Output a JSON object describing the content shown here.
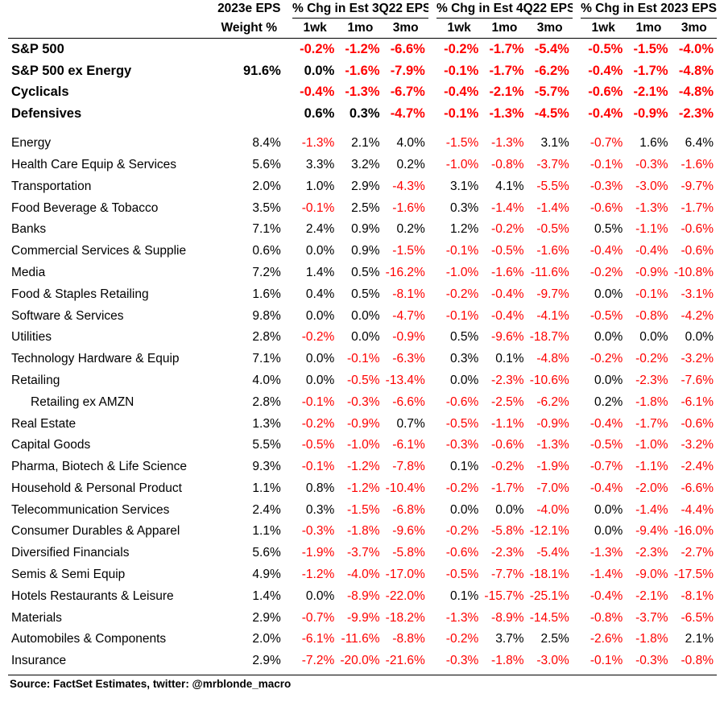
{
  "header": {
    "weight_top": "2023e EPS",
    "weight_bottom": "Weight %",
    "groups": [
      "% Chg in Est 3Q22 EPS",
      "% Chg in Est 4Q22 EPS",
      "% Chg in Est 2023 EPS"
    ],
    "periods": [
      "1wk",
      "1mo",
      "3mo",
      "1wk",
      "1mo",
      "3mo",
      "1wk",
      "1mo",
      "3mo"
    ]
  },
  "summary_rows": [
    {
      "name": "S&P 500",
      "weight": "",
      "values": [
        "-0.2%",
        "-1.2%",
        "-6.6%",
        "-0.2%",
        "-1.7%",
        "-5.4%",
        "-0.5%",
        "-1.5%",
        "-4.0%"
      ]
    },
    {
      "name": "S&P 500 ex Energy",
      "weight": "91.6%",
      "values": [
        "0.0%",
        "-1.6%",
        "-7.9%",
        "-0.1%",
        "-1.7%",
        "-6.2%",
        "-0.4%",
        "-1.7%",
        "-4.8%"
      ]
    },
    {
      "name": "Cyclicals",
      "weight": "",
      "values": [
        "-0.4%",
        "-1.3%",
        "-6.7%",
        "-0.4%",
        "-2.1%",
        "-5.7%",
        "-0.6%",
        "-2.1%",
        "-4.8%"
      ]
    },
    {
      "name": "Defensives",
      "weight": "",
      "values": [
        "0.6%",
        "0.3%",
        "-4.7%",
        "-0.1%",
        "-1.3%",
        "-4.5%",
        "-0.4%",
        "-0.9%",
        "-2.3%"
      ]
    }
  ],
  "rows": [
    {
      "name": "Energy",
      "weight": "8.4%",
      "values": [
        "-1.3%",
        "2.1%",
        "4.0%",
        "-1.5%",
        "-1.3%",
        "3.1%",
        "-0.7%",
        "1.6%",
        "6.4%"
      ]
    },
    {
      "name": "Health Care Equip & Services",
      "weight": "5.6%",
      "values": [
        "3.3%",
        "3.2%",
        "0.2%",
        "-1.0%",
        "-0.8%",
        "-3.7%",
        "-0.1%",
        "-0.3%",
        "-1.6%"
      ]
    },
    {
      "name": "Transportation",
      "weight": "2.0%",
      "values": [
        "1.0%",
        "2.9%",
        "-4.3%",
        "3.1%",
        "4.1%",
        "-5.5%",
        "-0.3%",
        "-3.0%",
        "-9.7%"
      ]
    },
    {
      "name": "Food Beverage & Tobacco",
      "weight": "3.5%",
      "values": [
        "-0.1%",
        "2.5%",
        "-1.6%",
        "0.3%",
        "-1.4%",
        "-1.4%",
        "-0.6%",
        "-1.3%",
        "-1.7%"
      ]
    },
    {
      "name": "Banks",
      "weight": "7.1%",
      "values": [
        "2.4%",
        "0.9%",
        "0.2%",
        "1.2%",
        "-0.2%",
        "-0.5%",
        "0.5%",
        "-1.1%",
        "-0.6%"
      ]
    },
    {
      "name": "Commercial Services & Supplie",
      "weight": "0.6%",
      "values": [
        "0.0%",
        "0.9%",
        "-1.5%",
        "-0.1%",
        "-0.5%",
        "-1.6%",
        "-0.4%",
        "-0.4%",
        "-0.6%"
      ]
    },
    {
      "name": "Media",
      "weight": "7.2%",
      "values": [
        "1.4%",
        "0.5%",
        "-16.2%",
        "-1.0%",
        "-1.6%",
        "-11.6%",
        "-0.2%",
        "-0.9%",
        "-10.8%"
      ]
    },
    {
      "name": "Food & Staples Retailing",
      "weight": "1.6%",
      "values": [
        "0.4%",
        "0.5%",
        "-8.1%",
        "-0.2%",
        "-0.4%",
        "-9.7%",
        "0.0%",
        "-0.1%",
        "-3.1%"
      ]
    },
    {
      "name": "Software & Services",
      "weight": "9.8%",
      "values": [
        "0.0%",
        "0.0%",
        "-4.7%",
        "-0.1%",
        "-0.4%",
        "-4.1%",
        "-0.5%",
        "-0.8%",
        "-4.2%"
      ]
    },
    {
      "name": "Utilities",
      "weight": "2.8%",
      "values": [
        "-0.2%",
        "0.0%",
        "-0.9%",
        "0.5%",
        "-9.6%",
        "-18.7%",
        "0.0%",
        "0.0%",
        "0.0%"
      ]
    },
    {
      "name": "Technology Hardware & Equip",
      "weight": "7.1%",
      "values": [
        "0.0%",
        "-0.1%",
        "-6.3%",
        "0.3%",
        "0.1%",
        "-4.8%",
        "-0.2%",
        "-0.2%",
        "-3.2%"
      ]
    },
    {
      "name": "Retailing",
      "weight": "4.0%",
      "values": [
        "0.0%",
        "-0.5%",
        "-13.4%",
        "0.0%",
        "-2.3%",
        "-10.6%",
        "0.0%",
        "-2.3%",
        "-7.6%"
      ]
    },
    {
      "name": "Retailing ex AMZN",
      "weight": "2.8%",
      "indent": true,
      "values": [
        "-0.1%",
        "-0.3%",
        "-6.6%",
        "-0.6%",
        "-2.5%",
        "-6.2%",
        "0.2%",
        "-1.8%",
        "-6.1%"
      ]
    },
    {
      "name": "Real Estate",
      "weight": "1.3%",
      "values": [
        "-0.2%",
        "-0.9%",
        "0.7%",
        "-0.5%",
        "-1.1%",
        "-0.9%",
        "-0.4%",
        "-1.7%",
        "-0.6%"
      ]
    },
    {
      "name": "Capital Goods",
      "weight": "5.5%",
      "values": [
        "-0.5%",
        "-1.0%",
        "-6.1%",
        "-0.3%",
        "-0.6%",
        "-1.3%",
        "-0.5%",
        "-1.0%",
        "-3.2%"
      ]
    },
    {
      "name": "Pharma, Biotech & Life Science",
      "weight": "9.3%",
      "values": [
        "-0.1%",
        "-1.2%",
        "-7.8%",
        "0.1%",
        "-0.2%",
        "-1.9%",
        "-0.7%",
        "-1.1%",
        "-2.4%"
      ]
    },
    {
      "name": "Household & Personal Product",
      "weight": "1.1%",
      "values": [
        "0.8%",
        "-1.2%",
        "-10.4%",
        "-0.2%",
        "-1.7%",
        "-7.0%",
        "-0.4%",
        "-2.0%",
        "-6.6%"
      ]
    },
    {
      "name": "Telecommunication Services",
      "weight": "2.4%",
      "values": [
        "0.3%",
        "-1.5%",
        "-6.8%",
        "0.0%",
        "0.0%",
        "-4.0%",
        "0.0%",
        "-1.4%",
        "-4.4%"
      ]
    },
    {
      "name": "Consumer Durables & Apparel",
      "weight": "1.1%",
      "values": [
        "-0.3%",
        "-1.8%",
        "-9.6%",
        "-0.2%",
        "-5.8%",
        "-12.1%",
        "0.0%",
        "-9.4%",
        "-16.0%"
      ]
    },
    {
      "name": "Diversified Financials",
      "weight": "5.6%",
      "values": [
        "-1.9%",
        "-3.7%",
        "-5.8%",
        "-0.6%",
        "-2.3%",
        "-5.4%",
        "-1.3%",
        "-2.3%",
        "-2.7%"
      ]
    },
    {
      "name": "Semis & Semi Equip",
      "weight": "4.9%",
      "values": [
        "-1.2%",
        "-4.0%",
        "-17.0%",
        "-0.5%",
        "-7.7%",
        "-18.1%",
        "-1.4%",
        "-9.0%",
        "-17.5%"
      ]
    },
    {
      "name": "Hotels Restaurants & Leisure",
      "weight": "1.4%",
      "values": [
        "0.0%",
        "-8.9%",
        "-22.0%",
        "0.1%",
        "-15.7%",
        "-25.1%",
        "-0.4%",
        "-2.1%",
        "-8.1%"
      ]
    },
    {
      "name": "Materials",
      "weight": "2.9%",
      "values": [
        "-0.7%",
        "-9.9%",
        "-18.2%",
        "-1.3%",
        "-8.9%",
        "-14.5%",
        "-0.8%",
        "-3.7%",
        "-6.5%"
      ]
    },
    {
      "name": "Automobiles & Components",
      "weight": "2.0%",
      "values": [
        "-6.1%",
        "-11.6%",
        "-8.8%",
        "-0.2%",
        "3.7%",
        "2.5%",
        "-2.6%",
        "-1.8%",
        "2.1%"
      ]
    },
    {
      "name": "Insurance",
      "weight": "2.9%",
      "values": [
        "-7.2%",
        "-20.0%",
        "-21.6%",
        "-0.3%",
        "-1.8%",
        "-3.0%",
        "-0.1%",
        "-0.3%",
        "-0.8%"
      ]
    }
  ],
  "source": "Source: FactSet Estimates, twitter: @mrblonde_macro",
  "colors": {
    "negative": "#ff0000",
    "non_negative": "#000000"
  }
}
